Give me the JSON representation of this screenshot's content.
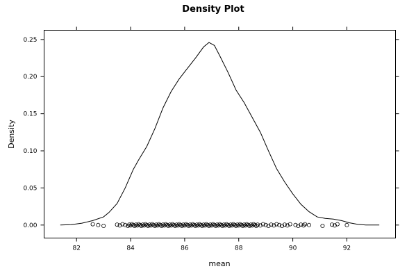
{
  "chart_data": {
    "type": "line",
    "title": "Density Plot",
    "xlabel": "mean",
    "ylabel": "Density",
    "xlim": [
      80.8,
      93.8
    ],
    "ylim": [
      -0.0175,
      0.2625
    ],
    "x_ticks": [
      82,
      84,
      86,
      88,
      90,
      92
    ],
    "x_tick_labels": [
      "82",
      "84",
      "86",
      "88",
      "90",
      "92"
    ],
    "y_ticks": [
      0.0,
      0.05,
      0.1,
      0.15,
      0.2,
      0.25
    ],
    "y_tick_labels": [
      "0.00",
      "0.05",
      "0.10",
      "0.15",
      "0.20",
      "0.25"
    ],
    "grid": false,
    "legend": "none",
    "series": [
      {
        "x": [
          81.4,
          81.8,
          82.2,
          82.6,
          83.0,
          83.2,
          83.5,
          83.8,
          84.1,
          84.3,
          84.6,
          84.9,
          85.2,
          85.5,
          85.8,
          86.1,
          86.4,
          86.7,
          86.9,
          87.1,
          87.3,
          87.6,
          87.9,
          88.2,
          88.5,
          88.8,
          89.1,
          89.4,
          89.7,
          90.0,
          90.3,
          90.6,
          90.9,
          91.2,
          91.5,
          91.8,
          92.1,
          92.4,
          92.7,
          93.2
        ],
        "y": [
          0.0,
          0.0005,
          0.0025,
          0.006,
          0.011,
          0.017,
          0.029,
          0.05,
          0.075,
          0.088,
          0.106,
          0.13,
          0.158,
          0.18,
          0.197,
          0.211,
          0.225,
          0.24,
          0.246,
          0.242,
          0.228,
          0.206,
          0.182,
          0.165,
          0.145,
          0.125,
          0.1,
          0.076,
          0.058,
          0.042,
          0.028,
          0.018,
          0.011,
          0.009,
          0.008,
          0.006,
          0.003,
          0.001,
          0.0,
          0.0
        ]
      }
    ],
    "rug_points": [
      82.6,
      82.8,
      83.0,
      83.5,
      83.6,
      83.7,
      83.8,
      83.9,
      83.95,
      84.0,
      84.05,
      84.1,
      84.15,
      84.2,
      84.25,
      84.3,
      84.35,
      84.4,
      84.45,
      84.5,
      84.55,
      84.6,
      84.65,
      84.7,
      84.75,
      84.8,
      84.85,
      84.9,
      84.95,
      85.0,
      85.05,
      85.1,
      85.15,
      85.2,
      85.25,
      85.3,
      85.35,
      85.4,
      85.45,
      85.5,
      85.55,
      85.6,
      85.65,
      85.7,
      85.75,
      85.8,
      85.85,
      85.9,
      85.95,
      86.0,
      86.05,
      86.1,
      86.15,
      86.2,
      86.25,
      86.3,
      86.35,
      86.4,
      86.45,
      86.5,
      86.55,
      86.6,
      86.65,
      86.7,
      86.75,
      86.8,
      86.85,
      86.9,
      86.95,
      87.0,
      87.05,
      87.1,
      87.15,
      87.2,
      87.25,
      87.3,
      87.35,
      87.4,
      87.45,
      87.5,
      87.55,
      87.6,
      87.65,
      87.7,
      87.75,
      87.8,
      87.85,
      87.9,
      87.95,
      88.0,
      88.05,
      88.1,
      88.15,
      88.2,
      88.25,
      88.3,
      88.35,
      88.4,
      88.45,
      88.5,
      88.55,
      88.6,
      88.65,
      88.7,
      88.8,
      88.9,
      89.0,
      89.1,
      89.2,
      89.3,
      89.4,
      89.5,
      89.6,
      89.7,
      89.8,
      89.9,
      90.1,
      90.2,
      90.3,
      90.4,
      90.45,
      90.6,
      91.1,
      91.45,
      91.55,
      91.65,
      92.0
    ],
    "rug_y": 0.0
  }
}
